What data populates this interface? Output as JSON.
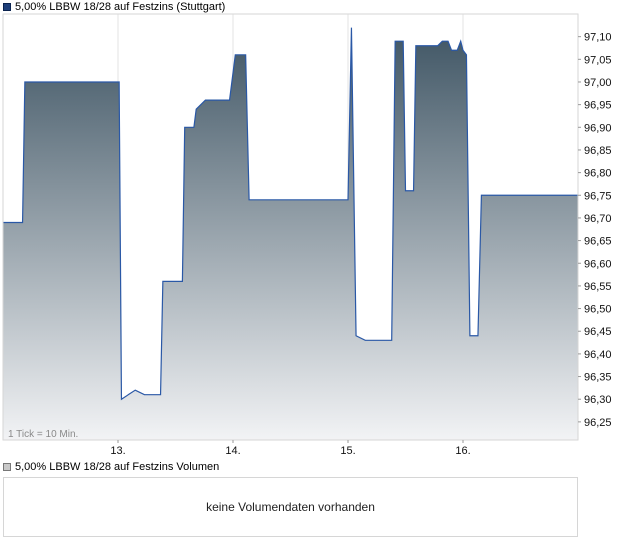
{
  "legend": {
    "price_label": "5,00% LBBW 18/28 auf Festzins (Stuttgart)",
    "volume_label": "5,00% LBBW 18/28 auf Festzins Volumen"
  },
  "volume_message": "keine Volumendaten vorhanden",
  "tick_note": "1 Tick = 10 Min.",
  "colors": {
    "line": "#2a58a6",
    "fill_top": "#3f5564",
    "fill_bottom": "#f2f3f5",
    "grid": "#e3e3e3",
    "frame": "#d6d6d6"
  },
  "chart_data": {
    "type": "area",
    "title": "5,00% LBBW 18/28 auf Festzins (Stuttgart)",
    "xlabel": "",
    "ylabel": "",
    "ylim": [
      96.21,
      97.15
    ],
    "xlim": [
      0,
      50
    ],
    "y_ticks": [
      "96,25",
      "96,30",
      "96,35",
      "96,40",
      "96,45",
      "96,50",
      "96,55",
      "96,60",
      "96,65",
      "96,70",
      "96,75",
      "96,80",
      "96,85",
      "96,90",
      "96,95",
      "97,00",
      "97,05",
      "97,10"
    ],
    "x_ticks": [
      {
        "label": "13.",
        "x": 10
      },
      {
        "label": "14.",
        "x": 20
      },
      {
        "label": "15.",
        "x": 30
      },
      {
        "label": "16.",
        "x": 40
      }
    ],
    "grid": true,
    "legend_position": "top-left",
    "series": [
      {
        "name": "5,00% LBBW 18/28 auf Festzins (Stuttgart)",
        "points": [
          [
            0,
            96.69
          ],
          [
            1.7,
            96.69
          ],
          [
            1.9,
            97.0
          ],
          [
            10.1,
            97.0
          ],
          [
            10.3,
            96.3
          ],
          [
            10.9,
            96.31
          ],
          [
            11.5,
            96.32
          ],
          [
            12.3,
            96.31
          ],
          [
            13.7,
            96.31
          ],
          [
            13.9,
            96.56
          ],
          [
            15.6,
            96.56
          ],
          [
            15.8,
            96.9
          ],
          [
            16.6,
            96.9
          ],
          [
            16.8,
            96.94
          ],
          [
            17.6,
            96.96
          ],
          [
            19.7,
            96.96
          ],
          [
            20.2,
            97.06
          ],
          [
            21.1,
            97.06
          ],
          [
            21.4,
            96.74
          ],
          [
            30.0,
            96.74
          ],
          [
            30.3,
            97.12
          ],
          [
            30.7,
            96.44
          ],
          [
            31.5,
            96.43
          ],
          [
            33.8,
            96.43
          ],
          [
            34.1,
            97.09
          ],
          [
            34.8,
            97.09
          ],
          [
            35.0,
            96.76
          ],
          [
            35.7,
            96.76
          ],
          [
            35.9,
            97.08
          ],
          [
            37.8,
            97.08
          ],
          [
            38.2,
            97.09
          ],
          [
            38.7,
            97.09
          ],
          [
            39.0,
            97.07
          ],
          [
            39.5,
            97.07
          ],
          [
            39.8,
            97.09
          ],
          [
            40.0,
            97.07
          ],
          [
            40.3,
            97.06
          ],
          [
            40.6,
            96.44
          ],
          [
            41.3,
            96.44
          ],
          [
            41.6,
            96.75
          ],
          [
            50,
            96.75
          ]
        ]
      }
    ]
  }
}
